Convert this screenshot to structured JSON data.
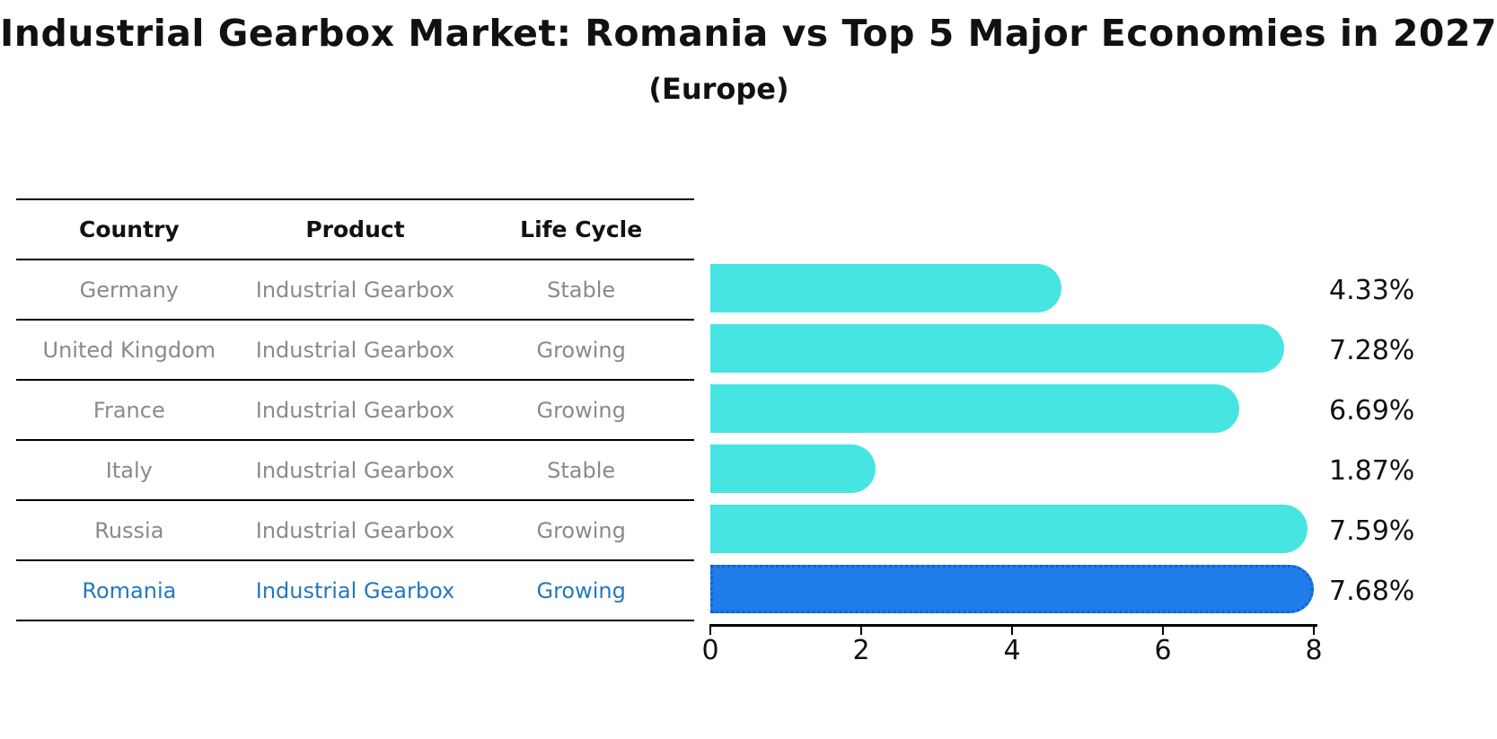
{
  "header": {
    "title": "Industrial Gearbox Market: Romania vs Top 5 Major Economies in 2027",
    "subtitle": "(Europe)"
  },
  "table": {
    "columns": [
      "Country",
      "Product",
      "Life Cycle"
    ],
    "rows": [
      {
        "country": "Germany",
        "product": "Industrial Gearbox",
        "life_cycle": "Stable"
      },
      {
        "country": "United Kingdom",
        "product": "Industrial Gearbox",
        "life_cycle": "Growing"
      },
      {
        "country": "France",
        "product": "Industrial Gearbox",
        "life_cycle": "Growing"
      },
      {
        "country": "Italy",
        "product": "Industrial Gearbox",
        "life_cycle": "Stable"
      },
      {
        "country": "Russia",
        "product": "Industrial Gearbox",
        "life_cycle": "Growing"
      },
      {
        "country": "Romania",
        "product": "Industrial Gearbox",
        "life_cycle": "Growing"
      }
    ],
    "highlight_row": "Romania"
  },
  "chart_data": {
    "type": "bar",
    "orientation": "horizontal",
    "title": "Industrial Gearbox Market: Romania vs Top 5 Major Economies in 2027",
    "subtitle": "(Europe)",
    "categories": [
      "Germany",
      "United Kingdom",
      "France",
      "Italy",
      "Russia",
      "Romania"
    ],
    "values": [
      4.33,
      7.28,
      6.69,
      1.87,
      7.59,
      7.68
    ],
    "value_labels": [
      "4.33%",
      "7.28%",
      "6.69%",
      "1.87%",
      "7.59%",
      "7.68%"
    ],
    "highlight_category": "Romania",
    "xlim": [
      0,
      8
    ],
    "xticks": [
      0,
      2,
      4,
      6,
      8
    ],
    "grid": "off",
    "legend": "none",
    "bar_color": "#46E5E2",
    "highlight_bar_color": "#1E7DE8",
    "highlight_border_color": "#1560d5",
    "highlight_text_color": "#2478be",
    "label_color": "#111111",
    "muted_text_color": "#8a8a8a"
  }
}
